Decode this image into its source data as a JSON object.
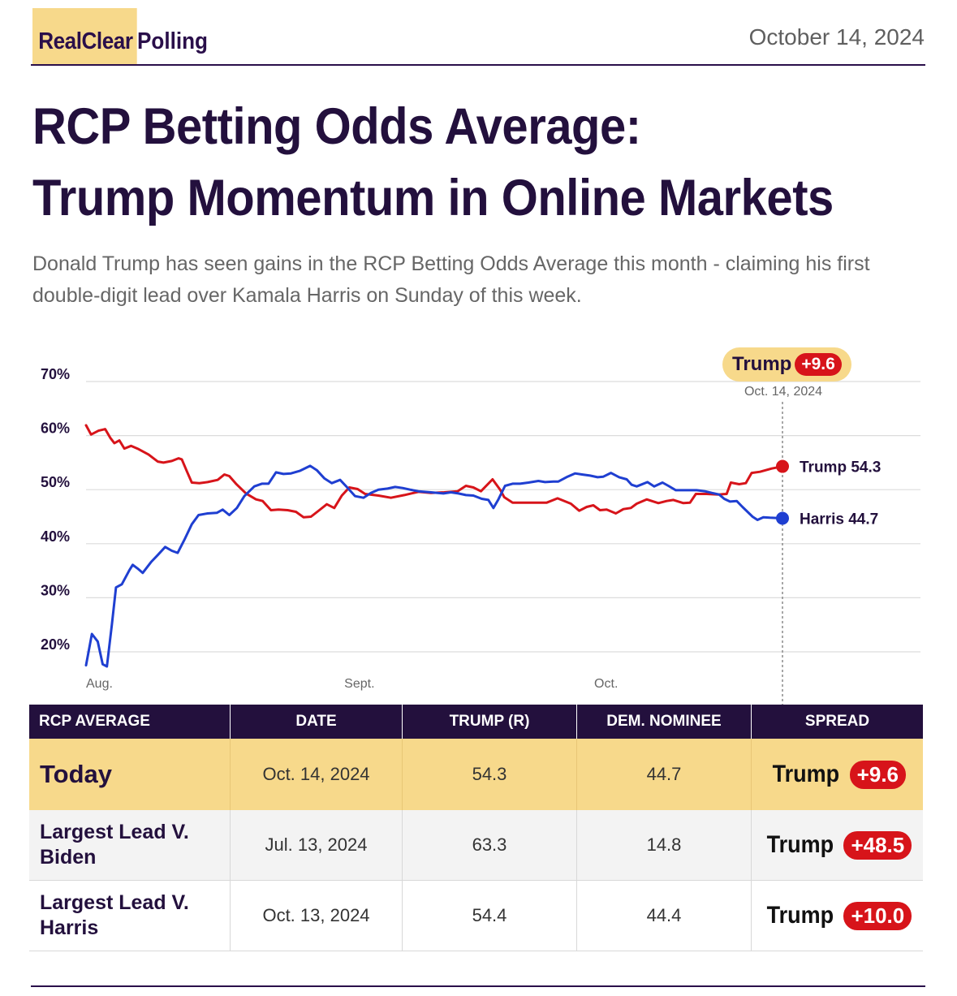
{
  "header": {
    "brand_part1": "RealClear",
    "brand_part2": "Polling",
    "date": "October 14, 2024"
  },
  "title_line1": "RCP Betting Odds Average:",
  "title_line2": "Trump Momentum in Online Markets",
  "subtitle": "Donald Trump has seen gains in the RCP Betting Odds Average this month - claiming his first double-digit lead over Kamala Harris on Sunday of this week.",
  "callout": {
    "name": "Trump",
    "spread": "+9.6",
    "date": "Oct. 14, 2024"
  },
  "colors": {
    "trump": "#d7141a",
    "harris": "#1f3fd1",
    "brand_dark": "#23103d",
    "highlight": "#f7d98b"
  },
  "chart_data": {
    "type": "line",
    "ylim": [
      20,
      70
    ],
    "yticks": [
      "70%",
      "60%",
      "50%",
      "40%",
      "30%",
      "20%"
    ],
    "ytick_values": [
      70,
      60,
      50,
      40,
      30,
      20
    ],
    "xtick_labels": [
      "Aug.",
      "Sept.",
      "Oct."
    ],
    "xtick_days": [
      0,
      31,
      61
    ],
    "x_unit": "days since Aug. 1, 2024",
    "grid": true,
    "series": [
      {
        "name": "Trump",
        "color": "#d7141a",
        "end_label": "Trump 54.3",
        "points": [
          [
            0,
            61.9
          ],
          [
            0.6,
            60.2
          ],
          [
            1.5,
            60.9
          ],
          [
            2.3,
            61.2
          ],
          [
            2.9,
            59.6
          ],
          [
            3.4,
            58.6
          ],
          [
            4.0,
            59.1
          ],
          [
            4.6,
            57.6
          ],
          [
            5.4,
            58.1
          ],
          [
            6.3,
            57.5
          ],
          [
            7.5,
            56.5
          ],
          [
            8.6,
            55.2
          ],
          [
            9.3,
            55.0
          ],
          [
            10.3,
            55.3
          ],
          [
            11.1,
            55.8
          ],
          [
            11.5,
            55.6
          ],
          [
            12.1,
            53.4
          ],
          [
            12.7,
            51.3
          ],
          [
            13.6,
            51.2
          ],
          [
            14.6,
            51.4
          ],
          [
            15.8,
            51.8
          ],
          [
            16.6,
            52.8
          ],
          [
            17.2,
            52.5
          ],
          [
            18.0,
            51.1
          ],
          [
            19.2,
            49.3
          ],
          [
            20.4,
            48.2
          ],
          [
            21.2,
            47.9
          ],
          [
            22.2,
            46.2
          ],
          [
            23.1,
            46.3
          ],
          [
            24.2,
            46.2
          ],
          [
            25.2,
            45.9
          ],
          [
            26.1,
            44.9
          ],
          [
            27.0,
            45.0
          ],
          [
            28.0,
            46.2
          ],
          [
            28.9,
            47.3
          ],
          [
            29.8,
            46.6
          ],
          [
            30.7,
            48.9
          ],
          [
            31.6,
            50.4
          ],
          [
            32.6,
            50.1
          ],
          [
            33.5,
            49.2
          ],
          [
            35.1,
            48.9
          ],
          [
            36.6,
            48.5
          ],
          [
            38.2,
            49.0
          ],
          [
            39.9,
            49.6
          ],
          [
            41.4,
            49.4
          ],
          [
            43.0,
            49.5
          ],
          [
            44.6,
            49.7
          ],
          [
            45.6,
            50.7
          ],
          [
            46.5,
            50.4
          ],
          [
            47.4,
            49.7
          ],
          [
            48.8,
            51.9
          ],
          [
            49.7,
            50.0
          ],
          [
            50.2,
            48.6
          ],
          [
            51.2,
            47.6
          ],
          [
            53.5,
            47.6
          ],
          [
            55.3,
            47.6
          ],
          [
            56.6,
            48.4
          ],
          [
            58.2,
            47.4
          ],
          [
            59.2,
            46.1
          ],
          [
            60.1,
            46.8
          ],
          [
            60.9,
            47.1
          ],
          [
            61.7,
            46.2
          ],
          [
            62.5,
            46.3
          ],
          [
            63.6,
            45.6
          ],
          [
            64.5,
            46.4
          ],
          [
            65.4,
            46.6
          ],
          [
            66.1,
            47.4
          ],
          [
            67.3,
            48.2
          ],
          [
            68.7,
            47.5
          ],
          [
            69.7,
            47.9
          ],
          [
            70.5,
            48.1
          ],
          [
            71.7,
            47.5
          ],
          [
            72.5,
            47.6
          ],
          [
            73.2,
            49.2
          ],
          [
            74.5,
            49.2
          ],
          [
            75.9,
            49.1
          ],
          [
            76.9,
            49.2
          ],
          [
            77.4,
            51.3
          ],
          [
            78.4,
            51.0
          ],
          [
            79.2,
            51.2
          ],
          [
            79.9,
            53.1
          ],
          [
            80.9,
            53.3
          ],
          [
            82.3,
            53.9
          ],
          [
            83.6,
            54.3
          ]
        ]
      },
      {
        "name": "Harris",
        "color": "#1f3fd1",
        "end_label": "Harris 44.7",
        "points": [
          [
            0,
            17.5
          ],
          [
            0.7,
            23.3
          ],
          [
            1.4,
            21.9
          ],
          [
            2.0,
            17.7
          ],
          [
            2.5,
            17.3
          ],
          [
            3.1,
            25.0
          ],
          [
            3.6,
            31.9
          ],
          [
            4.3,
            32.5
          ],
          [
            5.2,
            35.1
          ],
          [
            5.6,
            36.1
          ],
          [
            6.2,
            35.4
          ],
          [
            6.8,
            34.6
          ],
          [
            7.8,
            36.6
          ],
          [
            8.6,
            37.9
          ],
          [
            9.5,
            39.4
          ],
          [
            10.3,
            38.7
          ],
          [
            11.0,
            38.3
          ],
          [
            11.8,
            40.7
          ],
          [
            12.7,
            43.6
          ],
          [
            13.5,
            45.3
          ],
          [
            14.6,
            45.6
          ],
          [
            15.7,
            45.7
          ],
          [
            16.4,
            46.3
          ],
          [
            17.2,
            45.3
          ],
          [
            18.1,
            46.6
          ],
          [
            19.0,
            48.8
          ],
          [
            20.2,
            50.6
          ],
          [
            21.1,
            51.1
          ],
          [
            21.9,
            51.1
          ],
          [
            22.8,
            53.2
          ],
          [
            23.7,
            52.9
          ],
          [
            24.6,
            53.0
          ],
          [
            25.7,
            53.5
          ],
          [
            26.9,
            54.4
          ],
          [
            27.7,
            53.6
          ],
          [
            28.6,
            52.1
          ],
          [
            29.5,
            51.2
          ],
          [
            30.5,
            51.8
          ],
          [
            31.3,
            50.5
          ],
          [
            32.3,
            48.8
          ],
          [
            33.3,
            48.5
          ],
          [
            34.2,
            49.4
          ],
          [
            35.1,
            50.0
          ],
          [
            36.2,
            50.2
          ],
          [
            37.1,
            50.5
          ],
          [
            38.0,
            50.3
          ],
          [
            38.9,
            50.0
          ],
          [
            39.9,
            49.7
          ],
          [
            41.4,
            49.5
          ],
          [
            42.9,
            49.3
          ],
          [
            43.8,
            49.5
          ],
          [
            44.7,
            49.3
          ],
          [
            45.6,
            49.0
          ],
          [
            46.5,
            48.9
          ],
          [
            47.5,
            48.3
          ],
          [
            48.3,
            48.1
          ],
          [
            48.9,
            46.6
          ],
          [
            49.5,
            48.2
          ],
          [
            50.3,
            50.7
          ],
          [
            51.2,
            51.1
          ],
          [
            52.1,
            51.1
          ],
          [
            53.1,
            51.3
          ],
          [
            54.3,
            51.6
          ],
          [
            55.1,
            51.4
          ],
          [
            56.1,
            51.5
          ],
          [
            56.7,
            51.5
          ],
          [
            57.8,
            52.4
          ],
          [
            58.7,
            53.0
          ],
          [
            59.6,
            52.8
          ],
          [
            60.5,
            52.6
          ],
          [
            61.4,
            52.3
          ],
          [
            62.1,
            52.4
          ],
          [
            63.0,
            53.1
          ],
          [
            64.0,
            52.3
          ],
          [
            64.9,
            51.9
          ],
          [
            65.5,
            50.9
          ],
          [
            66.1,
            50.6
          ],
          [
            66.6,
            50.9
          ],
          [
            67.4,
            51.4
          ],
          [
            68.2,
            50.6
          ],
          [
            69.2,
            51.3
          ],
          [
            69.9,
            50.7
          ],
          [
            70.8,
            49.9
          ],
          [
            72.1,
            49.9
          ],
          [
            73.3,
            49.9
          ],
          [
            74.3,
            49.7
          ],
          [
            75.1,
            49.4
          ],
          [
            76.0,
            49.1
          ],
          [
            76.6,
            48.3
          ],
          [
            77.3,
            47.8
          ],
          [
            78.1,
            47.9
          ],
          [
            78.8,
            46.8
          ],
          [
            80.0,
            45.0
          ],
          [
            80.6,
            44.4
          ],
          [
            81.3,
            44.9
          ],
          [
            82.1,
            44.8
          ],
          [
            83.6,
            44.7
          ]
        ]
      }
    ]
  },
  "table": {
    "headers": [
      "RCP AVERAGE",
      "DATE",
      "TRUMP (R)",
      "DEM. NOMINEE",
      "SPREAD"
    ],
    "rows": [
      {
        "label": "Today",
        "date": "Oct. 14, 2024",
        "trump": "54.3",
        "dem": "44.7",
        "spread_name": "Trump",
        "spread_value": "+9.6"
      },
      {
        "label": "Largest Lead V. Biden",
        "date": "Jul. 13, 2024",
        "trump": "63.3",
        "dem": "14.8",
        "spread_name": "Trump",
        "spread_value": "+48.5"
      },
      {
        "label": "Largest Lead V. Harris",
        "date": "Oct. 13, 2024",
        "trump": "54.4",
        "dem": "44.4",
        "spread_name": "Trump",
        "spread_value": "+10.0"
      }
    ]
  }
}
